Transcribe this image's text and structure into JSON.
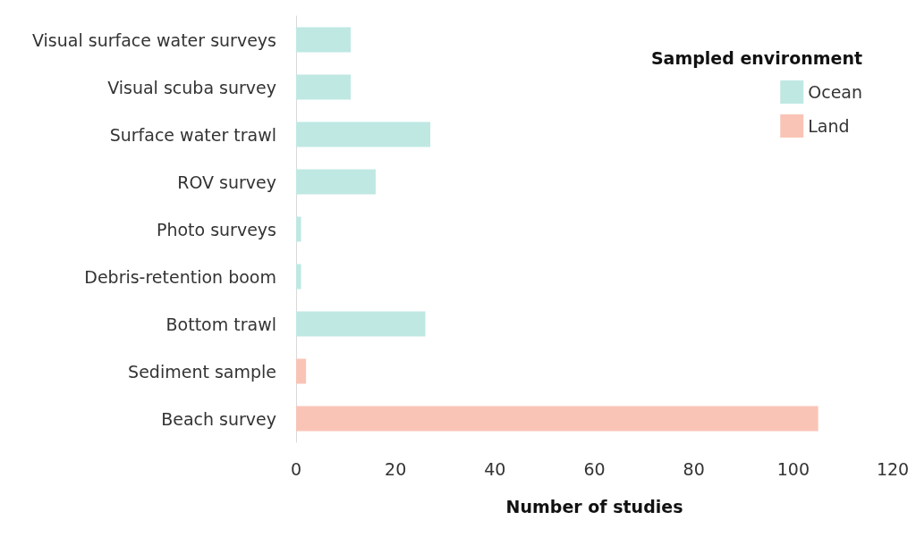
{
  "chart_data": {
    "type": "bar",
    "orientation": "horizontal",
    "stacked": true,
    "categories": [
      "Visual surface water surveys",
      "Visual scuba survey",
      "Surface water trawl",
      "ROV survey",
      "Photo surveys",
      "Debris-retention boom",
      "Bottom trawl",
      "Sediment sample",
      "Beach survey"
    ],
    "series": [
      {
        "name": "Ocean",
        "color": "#bfe8e3",
        "values": [
          11,
          11,
          27,
          16,
          1,
          1,
          26,
          null,
          null
        ]
      },
      {
        "name": "Land",
        "color": "#f9c4b6",
        "values": [
          null,
          null,
          null,
          null,
          null,
          null,
          null,
          2,
          105
        ]
      }
    ],
    "xlim": [
      0,
      120
    ],
    "xticks": [
      0,
      20,
      40,
      60,
      80,
      100,
      120
    ],
    "xlabel": "Number of studies",
    "legend_title": "Sampled environment",
    "legend": "top right",
    "grid": false
  }
}
